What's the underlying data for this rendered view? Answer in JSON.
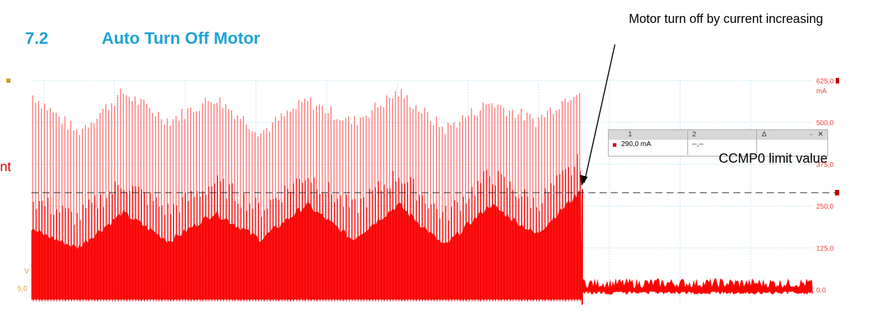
{
  "heading": {
    "number": "7.2",
    "title": "Auto Turn Off Motor"
  },
  "annotations": {
    "callout": "Motor turn off by current increasing",
    "limit_label": "CCMP0 limit value",
    "clipped_left_label": "nt"
  },
  "cursor_box": {
    "col1": "1",
    "col2": "2",
    "col3": "Δ",
    "value1": "290,0 mA",
    "value2": "--,--",
    "min_label": "_",
    "close_label": "✕"
  },
  "colors": {
    "heading": "#1fa2d8",
    "trace": "#ff0000",
    "trace_light": "#ff6a6a",
    "axis_right": "#f04040",
    "axis_left": "#d9a43a",
    "grid": "#bfe3f2"
  },
  "chart_data": {
    "type": "line",
    "title": "",
    "ylabel": "mA",
    "ylim": [
      -45,
      625
    ],
    "y_ticks": [
      "625,0",
      "500,0",
      "375,0",
      "250,0",
      "125,0",
      "0,0"
    ],
    "left_axis": {
      "unit": "V",
      "tick": "5,0"
    },
    "grid": true,
    "limit_value_mA": 290,
    "turn_off_fraction": 0.705,
    "series": [
      {
        "name": "",
        "description_of_values": "pulsed motor current envelope",
        "peak_envelope_mA": [
          585,
          470,
          590,
          505,
          575,
          470,
          565,
          500,
          590,
          480,
          560,
          505,
          610
        ],
        "mean_envelope_mA": [
          180,
          125,
          230,
          145,
          230,
          150,
          255,
          150,
          255,
          130,
          255,
          165,
          300
        ],
        "after_off_mA": [
          5,
          15
        ]
      }
    ]
  }
}
